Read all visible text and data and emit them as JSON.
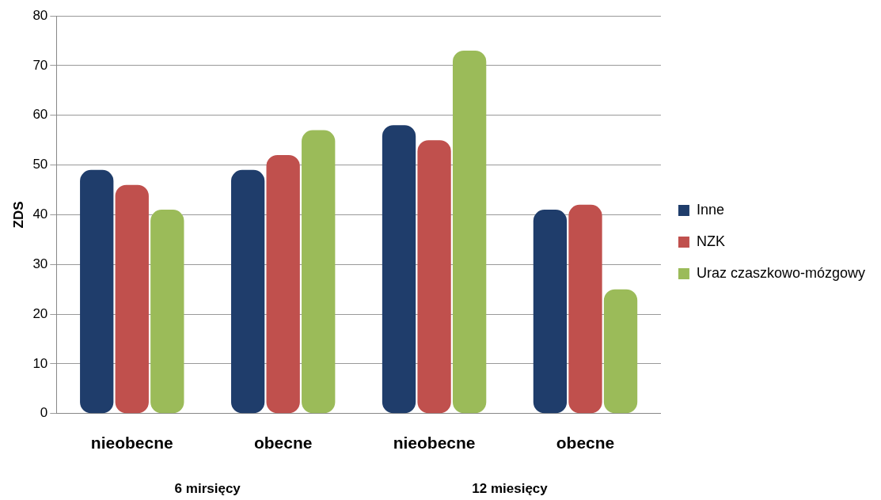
{
  "chart_data": {
    "type": "bar",
    "ylabel": "ZDS",
    "categories": [
      "nieobecne",
      "obecne",
      "nieobecne",
      "obecne"
    ],
    "series": [
      {
        "name": "Inne",
        "color": "#1f3d6b",
        "values": [
          49,
          49,
          58,
          41
        ]
      },
      {
        "name": "NZK",
        "color": "#c0504d",
        "values": [
          46,
          52,
          55,
          42
        ]
      },
      {
        "name": "Uraz czaszkowo-mózgowy",
        "color": "#9bbb59",
        "values": [
          41,
          57,
          73,
          25
        ]
      }
    ],
    "ylim": [
      0,
      80
    ],
    "yticks": [
      0,
      10,
      20,
      30,
      40,
      50,
      60,
      70,
      80
    ],
    "grid": "y",
    "legend": "right",
    "annotations": [
      "6 mirsięcy",
      "12 miesięcy"
    ]
  }
}
